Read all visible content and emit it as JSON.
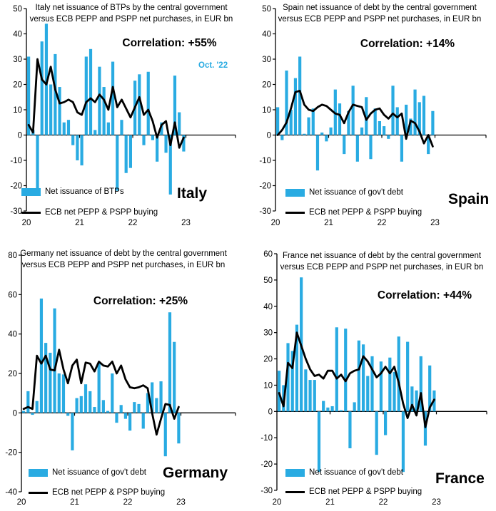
{
  "figure": {
    "description": "2x2 grid of monthly bar+line charts comparing euro-area government net debt issuance with ECB PEPP and PSPP net purchases, Jan 2020 - Dec 2022, in EUR bn",
    "background_color": "#ffffff",
    "accent_color": "#29ABE2",
    "line_color": "#000000"
  },
  "chart_data": [
    {
      "type": "bar",
      "country": "Italy",
      "title": "Italy net issuance of BTPs by the central government versus ECB PEPP and PSPP net purchases, in EUR bn",
      "title_lines": [
        "Italy net issuance of BTPs by the central government",
        "versus ECB PEPP and PSPP net purchases, in EUR bn"
      ],
      "correlation": "Correlation: +55%",
      "annotation": "Oct. '22",
      "annotation_color": "#29ABE2",
      "x_description": "monthly, Jan 2020 - Dec 2022",
      "x_tick_labels": [
        "20",
        "21",
        "22",
        "23"
      ],
      "ylim": [
        -30,
        50
      ],
      "ytick_step": 10,
      "grid": false,
      "legend_position": "bottom-left",
      "series": [
        {
          "name": "Net issuance of BTPs",
          "type": "bar",
          "color": "#29ABE2",
          "values": [
            31,
            2,
            -23,
            37,
            44,
            20,
            32,
            19,
            5,
            6,
            -4,
            -10,
            -12,
            31,
            34,
            2,
            27,
            19,
            5,
            29,
            -22,
            6,
            -15,
            -13,
            21.5,
            24,
            -4,
            25,
            -2,
            -10.5,
            5,
            -7,
            -23.5,
            23.5,
            9,
            -6.5
          ]
        },
        {
          "name": "ECB net PEPP & PSPP buying",
          "type": "line",
          "color": "#000000",
          "values": [
            4,
            1,
            30,
            22,
            20,
            27,
            18,
            12.5,
            13,
            14,
            13,
            9,
            8,
            13,
            14.5,
            13,
            16,
            14,
            10,
            19,
            11,
            14,
            10.5,
            7,
            11,
            15,
            8,
            10,
            5.5,
            -1,
            4,
            5.5,
            -4,
            5,
            -5,
            -1
          ]
        }
      ]
    },
    {
      "type": "bar",
      "country": "Spain",
      "title": "Spain net issuance of debt by the central government versus ECB PEPP and PSPP net purchases, in EUR bn",
      "title_lines": [
        "Spain net issuance of debt by the central government",
        "versus ECB PEPP and PSPP net purchases, in EUR bn"
      ],
      "correlation": "Correlation: +14%",
      "x_description": "monthly, Jan 2020 - Dec 2022",
      "x_tick_labels": [
        "20",
        "21",
        "22",
        "23"
      ],
      "ylim": [
        -30,
        50
      ],
      "ytick_step": 10,
      "grid": false,
      "legend_position": "bottom-left",
      "series": [
        {
          "name": "Net issuance of gov't debt",
          "type": "bar",
          "color": "#29ABE2",
          "values": [
            11,
            -2,
            25.5,
            10,
            22.5,
            31,
            0.5,
            7,
            10.5,
            -14,
            1,
            -2.5,
            3,
            18,
            12.5,
            -7.5,
            9.5,
            19.5,
            -10.5,
            3,
            15,
            -9.5,
            10.5,
            5.5,
            3.5,
            -1.5,
            19.5,
            11,
            -10.5,
            12,
            6.5,
            18,
            13,
            15.5,
            -7.5,
            9.5
          ]
        },
        {
          "name": "ECB net PEPP & PSPP buying",
          "type": "line",
          "color": "#000000",
          "values": [
            0,
            2,
            5,
            10.5,
            17,
            17.5,
            12,
            10,
            9.5,
            11,
            12,
            11.5,
            10,
            8.5,
            8,
            4.7,
            9,
            12,
            11.5,
            11,
            6,
            8.5,
            10,
            10.5,
            8,
            6.5,
            8.5,
            7,
            8.5,
            -1.5,
            5.7,
            4.7,
            1.4,
            -3.3,
            0,
            -4.5
          ]
        }
      ]
    },
    {
      "type": "bar",
      "country": "Germany",
      "title": "Germany net issuance of debt by the central government versus ECB PEPP and PSPP net purchases, in EUR bn",
      "title_lines": [
        "Germany net issuance of debt by the central government",
        "versus ECB PEPP and PSPP net purchases, in EUR bn"
      ],
      "correlation": "Correlation: +25%",
      "x_description": "monthly, Jan 2020 - Dec 2022",
      "x_tick_labels": [
        "20",
        "21",
        "22",
        "23"
      ],
      "ylim": [
        -40,
        80
      ],
      "ytick_step": 20,
      "grid": false,
      "legend_position": "bottom-left",
      "series": [
        {
          "name": "Net issuance of gov't debt",
          "type": "bar",
          "color": "#29ABE2",
          "values": [
            1,
            11,
            -1,
            6,
            58,
            35.5,
            30.5,
            53,
            20,
            19.5,
            -1.5,
            -19,
            7.5,
            8.5,
            14.5,
            11,
            3,
            25.5,
            6.5,
            1,
            20,
            -5,
            4,
            -3,
            -9,
            5.5,
            4.5,
            -8,
            10,
            15.5,
            7.5,
            16,
            -22,
            51,
            36,
            -15.5
          ]
        },
        {
          "name": "ECB net PEPP & PSPP buying",
          "type": "line",
          "color": "#000000",
          "values": [
            2,
            3,
            2,
            29,
            25,
            29,
            22,
            21.5,
            32,
            22,
            15,
            24,
            27,
            15,
            25.5,
            25,
            21,
            26,
            24,
            23.5,
            26,
            20,
            24,
            17,
            13,
            12.5,
            13,
            14,
            12.5,
            0,
            -11,
            -3,
            4.5,
            4,
            -3,
            3
          ]
        }
      ]
    },
    {
      "type": "bar",
      "country": "France",
      "title": "France net issuance of debt by the central government versus ECB PEPP and PSPP net purchases, in EUR bn",
      "title_lines": [
        "France net issuance of debt by the central government",
        "versus ECB PEPP and PSPP net purchases, in EUR bn"
      ],
      "correlation": "Correlation: +44%",
      "x_description": "monthly, Jan 2020 - Dec 2022",
      "x_tick_labels": [
        "20",
        "21",
        "22",
        "23"
      ],
      "ylim": [
        -30,
        60
      ],
      "ytick_step": 10,
      "grid": false,
      "legend_position": "bottom-left",
      "series": [
        {
          "name": "Net issuance of gov't debt",
          "type": "bar",
          "color": "#29ABE2",
          "values": [
            15.5,
            10,
            26,
            23,
            33,
            51,
            16,
            12,
            12,
            -23,
            4,
            1.5,
            2,
            32,
            0.5,
            31.5,
            -14,
            3.5,
            27,
            25.5,
            13.5,
            21,
            -16.5,
            19,
            -9,
            20.5,
            15,
            28.5,
            -23,
            26.5,
            9.5,
            8,
            21,
            -13,
            17.5,
            8
          ]
        },
        {
          "name": "ECB net PEPP & PSPP buying",
          "type": "line",
          "color": "#000000",
          "values": [
            7,
            2,
            18.5,
            16.5,
            30,
            25,
            20,
            16,
            13.5,
            14,
            12.5,
            15.5,
            15.5,
            12.5,
            14,
            11.5,
            14.5,
            15.5,
            16,
            21,
            19,
            16,
            13,
            14.5,
            17,
            14.5,
            17,
            11,
            3,
            -2.5,
            2.5,
            -1.5,
            7,
            -6,
            1.5,
            4.5
          ]
        }
      ]
    }
  ]
}
